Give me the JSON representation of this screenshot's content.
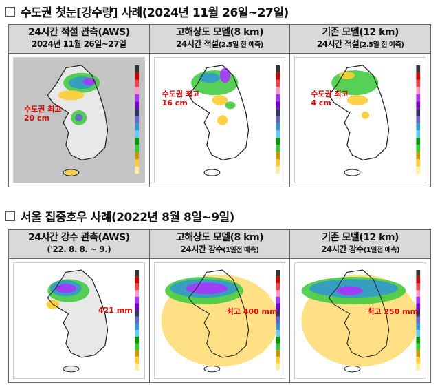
{
  "section1": {
    "title": "수도권 첫눈[강수량] 사례(2024년 11월 26일~27일)",
    "columns": [
      {
        "line1": "24시간 적설 관측(AWS)",
        "line2": "2024년 11월 26일~27일",
        "line2_note": "",
        "annotation_1": "수도권 최고",
        "annotation_2": "20 cm"
      },
      {
        "line1": "고해상도 모델(8 km)",
        "line2": "24시간 적설",
        "line2_note": "(2.5일 전 예측)",
        "annotation_1": "수도권 최고",
        "annotation_2": "16 cm"
      },
      {
        "line1": "기존 모델(12 km)",
        "line2": "24시간 적설",
        "line2_note": "(2.5일 전 예측)",
        "annotation_1": "수도권 최고",
        "annotation_2": "4 cm"
      }
    ]
  },
  "section2": {
    "title": "서울 집중호우 사례(2022년 8월 8일~9일)",
    "columns": [
      {
        "line1": "24시간 강수 관측(AWS)",
        "line2": "('22. 8. 8. ~ 9.)",
        "line2_note": "",
        "annotation_1": "421 mm"
      },
      {
        "line1": "고해상도 모델(8 km)",
        "line2": "24시간 강수",
        "line2_note": "(1일전 예측)",
        "annotation_1": "최고 400 mm"
      },
      {
        "line1": "기존 모델(12 km)",
        "line2": "24시간 강수",
        "line2_note": "(1일전 예측)",
        "annotation_1": "최고 250 mm"
      }
    ]
  },
  "colors": {
    "annotation": "#e00000",
    "header_bg": "#d9d9d9"
  }
}
